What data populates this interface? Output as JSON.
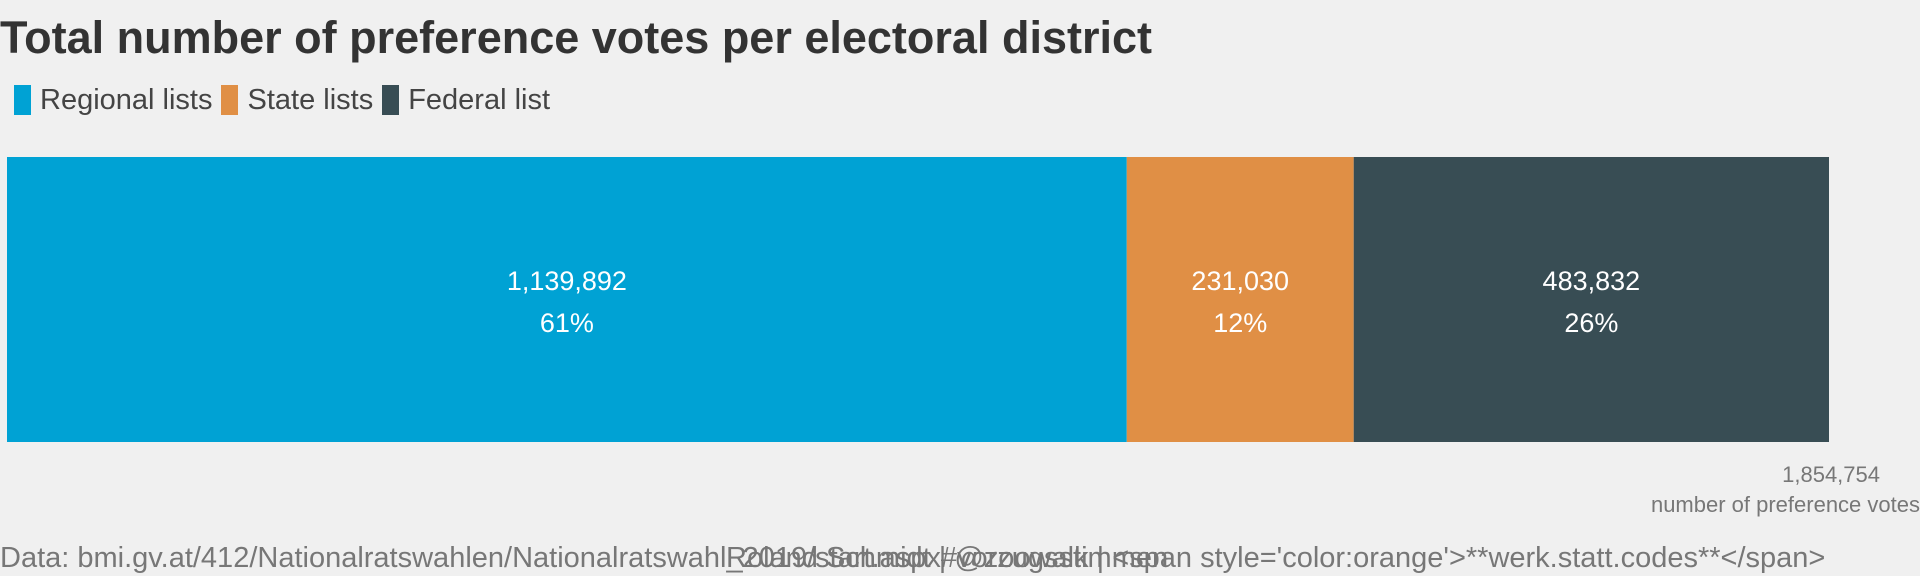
{
  "chart_data": {
    "type": "bar",
    "orientation": "horizontal-stacked",
    "title": "Total number of preference votes per electoral district",
    "legend_position": "top-left",
    "series": [
      {
        "name": "Regional lists",
        "value": 1139892,
        "value_label": "1,139,892",
        "percent_label": "61%",
        "color": "#00a2d4"
      },
      {
        "name": "State lists",
        "value": 231030,
        "value_label": "231,030",
        "percent_label": "12%",
        "color": "#e08f45"
      },
      {
        "name": "Federal list",
        "value": 483832,
        "value_label": "483,832",
        "percent_label": "26%",
        "color": "#384d54"
      }
    ],
    "total": {
      "value": 1854754,
      "value_label": "1,854,754",
      "label": "number of preference votes"
    },
    "grid": false
  },
  "footer": {
    "source": "Data: bmi.gv.at/412/Nationalratswahlen/Nationalratswahl_2019/start.aspx#vorzugsstimmen",
    "author": "Roland Schmidt | @zoowalk | <span style='color:orange'>**werk.statt.codes**</span>"
  }
}
